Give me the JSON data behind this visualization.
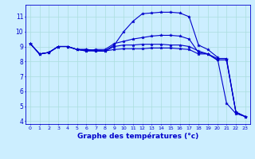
{
  "title": "Graphe des températures (°c)",
  "bg_color": "#cceeff",
  "line_color": "#0000cc",
  "grid_color": "#aadddd",
  "axis_color": "#0000cc",
  "text_color": "#0000cc",
  "xlim": [
    -0.5,
    23.5
  ],
  "ylim": [
    3.8,
    11.8
  ],
  "yticks": [
    4,
    5,
    6,
    7,
    8,
    9,
    10,
    11
  ],
  "xticks": [
    0,
    1,
    2,
    3,
    4,
    5,
    6,
    7,
    8,
    9,
    10,
    11,
    12,
    13,
    14,
    15,
    16,
    17,
    18,
    19,
    20,
    21,
    22,
    23
  ],
  "lines": [
    [
      9.2,
      8.5,
      8.6,
      9.0,
      9.0,
      8.8,
      8.7,
      8.7,
      8.7,
      9.1,
      10.0,
      10.7,
      11.2,
      11.25,
      11.3,
      11.3,
      11.25,
      11.0,
      9.1,
      8.8,
      8.3,
      5.2,
      4.5,
      4.3
    ],
    [
      9.2,
      8.5,
      8.6,
      9.0,
      9.0,
      8.8,
      8.7,
      8.8,
      8.8,
      9.2,
      9.35,
      9.5,
      9.6,
      9.7,
      9.75,
      9.75,
      9.7,
      9.5,
      8.6,
      8.5,
      8.2,
      8.2,
      4.6,
      4.3
    ],
    [
      9.2,
      8.5,
      8.6,
      9.0,
      9.0,
      8.8,
      8.8,
      8.7,
      8.7,
      9.0,
      9.1,
      9.1,
      9.15,
      9.15,
      9.15,
      9.1,
      9.1,
      9.0,
      8.7,
      8.5,
      8.1,
      8.1,
      4.6,
      4.3
    ],
    [
      9.2,
      8.5,
      8.6,
      9.0,
      9.0,
      8.8,
      8.8,
      8.75,
      8.7,
      8.8,
      8.85,
      8.85,
      8.85,
      8.9,
      8.9,
      8.9,
      8.85,
      8.8,
      8.5,
      8.5,
      8.1,
      8.1,
      4.6,
      4.3
    ]
  ]
}
